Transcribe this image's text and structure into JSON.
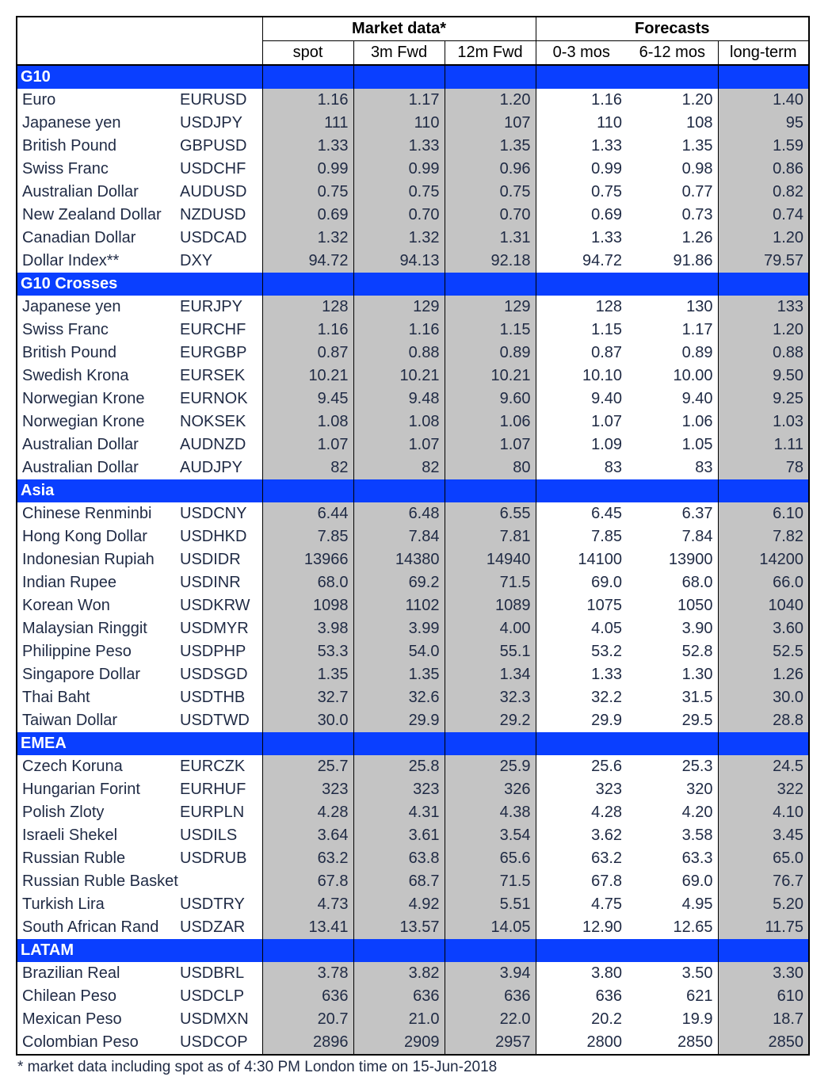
{
  "colors": {
    "section_bg": "#0a3fff",
    "section_text": "#ffffff",
    "shade_bg": "#c4c4c4",
    "text": "#1f2a44",
    "border": "#000000",
    "page_bg": "#ffffff"
  },
  "header": {
    "group_market": "Market data*",
    "group_forecasts": "Forecasts",
    "cols": [
      "spot",
      "3m Fwd",
      "12m Fwd",
      "0-3 mos",
      "6-12 mos",
      "long-term"
    ]
  },
  "sections": [
    {
      "title": "G10",
      "rows": [
        {
          "name": "Euro",
          "ticker": "EURUSD",
          "v": [
            "1.16",
            "1.17",
            "1.20",
            "1.16",
            "1.20",
            "1.40"
          ]
        },
        {
          "name": "Japanese yen",
          "ticker": "USDJPY",
          "v": [
            "111",
            "110",
            "107",
            "110",
            "108",
            "95"
          ]
        },
        {
          "name": "British Pound",
          "ticker": "GBPUSD",
          "v": [
            "1.33",
            "1.33",
            "1.35",
            "1.33",
            "1.35",
            "1.59"
          ]
        },
        {
          "name": "Swiss Franc",
          "ticker": "USDCHF",
          "v": [
            "0.99",
            "0.99",
            "0.96",
            "0.99",
            "0.98",
            "0.86"
          ]
        },
        {
          "name": "Australian Dollar",
          "ticker": "AUDUSD",
          "v": [
            "0.75",
            "0.75",
            "0.75",
            "0.75",
            "0.77",
            "0.82"
          ]
        },
        {
          "name": "New Zealand Dollar",
          "ticker": "NZDUSD",
          "v": [
            "0.69",
            "0.70",
            "0.70",
            "0.69",
            "0.73",
            "0.74"
          ]
        },
        {
          "name": "Canadian Dollar",
          "ticker": "USDCAD",
          "v": [
            "1.32",
            "1.32",
            "1.31",
            "1.33",
            "1.26",
            "1.20"
          ]
        },
        {
          "name": "Dollar Index**",
          "ticker": "DXY",
          "v": [
            "94.72",
            "94.13",
            "92.18",
            "94.72",
            "91.86",
            "79.57"
          ]
        }
      ]
    },
    {
      "title": "G10 Crosses",
      "rows": [
        {
          "name": "Japanese yen",
          "ticker": "EURJPY",
          "v": [
            "128",
            "129",
            "129",
            "128",
            "130",
            "133"
          ]
        },
        {
          "name": "Swiss Franc",
          "ticker": "EURCHF",
          "v": [
            "1.16",
            "1.16",
            "1.15",
            "1.15",
            "1.17",
            "1.20"
          ]
        },
        {
          "name": "British Pound",
          "ticker": "EURGBP",
          "v": [
            "0.87",
            "0.88",
            "0.89",
            "0.87",
            "0.89",
            "0.88"
          ]
        },
        {
          "name": "Swedish Krona",
          "ticker": "EURSEK",
          "v": [
            "10.21",
            "10.21",
            "10.21",
            "10.10",
            "10.00",
            "9.50"
          ]
        },
        {
          "name": "Norwegian Krone",
          "ticker": "EURNOK",
          "v": [
            "9.45",
            "9.48",
            "9.60",
            "9.40",
            "9.40",
            "9.25"
          ]
        },
        {
          "name": "Norwegian Krone",
          "ticker": "NOKSEK",
          "v": [
            "1.08",
            "1.08",
            "1.06",
            "1.07",
            "1.06",
            "1.03"
          ]
        },
        {
          "name": "Australian Dollar",
          "ticker": "AUDNZD",
          "v": [
            "1.07",
            "1.07",
            "1.07",
            "1.09",
            "1.05",
            "1.11"
          ]
        },
        {
          "name": "Australian Dollar",
          "ticker": "AUDJPY",
          "v": [
            "82",
            "82",
            "80",
            "83",
            "83",
            "78"
          ]
        }
      ]
    },
    {
      "title": "Asia",
      "rows": [
        {
          "name": "Chinese Renminbi",
          "ticker": "USDCNY",
          "v": [
            "6.44",
            "6.48",
            "6.55",
            "6.45",
            "6.37",
            "6.10"
          ]
        },
        {
          "name": "Hong Kong Dollar",
          "ticker": "USDHKD",
          "v": [
            "7.85",
            "7.84",
            "7.81",
            "7.85",
            "7.84",
            "7.82"
          ]
        },
        {
          "name": "Indonesian Rupiah",
          "ticker": "USDIDR",
          "v": [
            "13966",
            "14380",
            "14940",
            "14100",
            "13900",
            "14200"
          ]
        },
        {
          "name": "Indian Rupee",
          "ticker": "USDINR",
          "v": [
            "68.0",
            "69.2",
            "71.5",
            "69.0",
            "68.0",
            "66.0"
          ]
        },
        {
          "name": "Korean Won",
          "ticker": "USDKRW",
          "v": [
            "1098",
            "1102",
            "1089",
            "1075",
            "1050",
            "1040"
          ]
        },
        {
          "name": "Malaysian Ringgit",
          "ticker": "USDMYR",
          "v": [
            "3.98",
            "3.99",
            "4.00",
            "4.05",
            "3.90",
            "3.60"
          ]
        },
        {
          "name": "Philippine Peso",
          "ticker": "USDPHP",
          "v": [
            "53.3",
            "54.0",
            "55.1",
            "53.2",
            "52.8",
            "52.5"
          ]
        },
        {
          "name": "Singapore Dollar",
          "ticker": "USDSGD",
          "v": [
            "1.35",
            "1.35",
            "1.34",
            "1.33",
            "1.30",
            "1.26"
          ]
        },
        {
          "name": "Thai Baht",
          "ticker": "USDTHB",
          "v": [
            "32.7",
            "32.6",
            "32.3",
            "32.2",
            "31.5",
            "30.0"
          ]
        },
        {
          "name": "Taiwan Dollar",
          "ticker": "USDTWD",
          "v": [
            "30.0",
            "29.9",
            "29.2",
            "29.9",
            "29.5",
            "28.8"
          ]
        }
      ]
    },
    {
      "title": "EMEA",
      "rows": [
        {
          "name": "Czech Koruna",
          "ticker": "EURCZK",
          "v": [
            "25.7",
            "25.8",
            "25.9",
            "25.6",
            "25.3",
            "24.5"
          ]
        },
        {
          "name": "Hungarian Forint",
          "ticker": "EURHUF",
          "v": [
            "323",
            "323",
            "326",
            "323",
            "320",
            "322"
          ]
        },
        {
          "name": "Polish Zloty",
          "ticker": "EURPLN",
          "v": [
            "4.28",
            "4.31",
            "4.38",
            "4.28",
            "4.20",
            "4.10"
          ]
        },
        {
          "name": "Israeli Shekel",
          "ticker": "USDILS",
          "v": [
            "3.64",
            "3.61",
            "3.54",
            "3.62",
            "3.58",
            "3.45"
          ]
        },
        {
          "name": "Russian Ruble",
          "ticker": "USDRUB",
          "v": [
            "63.2",
            "63.8",
            "65.6",
            "63.2",
            "63.3",
            "65.0"
          ]
        },
        {
          "name": "Russian Ruble Basket",
          "ticker": "",
          "v": [
            "67.8",
            "68.7",
            "71.5",
            "67.8",
            "69.0",
            "76.7"
          ]
        },
        {
          "name": "Turkish Lira",
          "ticker": "USDTRY",
          "v": [
            "4.73",
            "4.92",
            "5.51",
            "4.75",
            "4.95",
            "5.20"
          ]
        },
        {
          "name": "South African Rand",
          "ticker": "USDZAR",
          "v": [
            "13.41",
            "13.57",
            "14.05",
            "12.90",
            "12.65",
            "11.75"
          ]
        }
      ]
    },
    {
      "title": "LATAM",
      "rows": [
        {
          "name": "Brazilian Real",
          "ticker": "USDBRL",
          "v": [
            "3.78",
            "3.82",
            "3.94",
            "3.80",
            "3.50",
            "3.30"
          ]
        },
        {
          "name": "Chilean Peso",
          "ticker": "USDCLP",
          "v": [
            "636",
            "636",
            "636",
            "636",
            "621",
            "610"
          ]
        },
        {
          "name": "Mexican Peso",
          "ticker": "USDMXN",
          "v": [
            "20.7",
            "21.0",
            "22.0",
            "20.2",
            "19.9",
            "18.7"
          ]
        },
        {
          "name": "Colombian Peso",
          "ticker": "USDCOP",
          "v": [
            "2896",
            "2909",
            "2957",
            "2800",
            "2850",
            "2850"
          ]
        }
      ]
    }
  ],
  "footnote": "* market data including spot as of 4:30 PM London time on 15-Jun-2018"
}
